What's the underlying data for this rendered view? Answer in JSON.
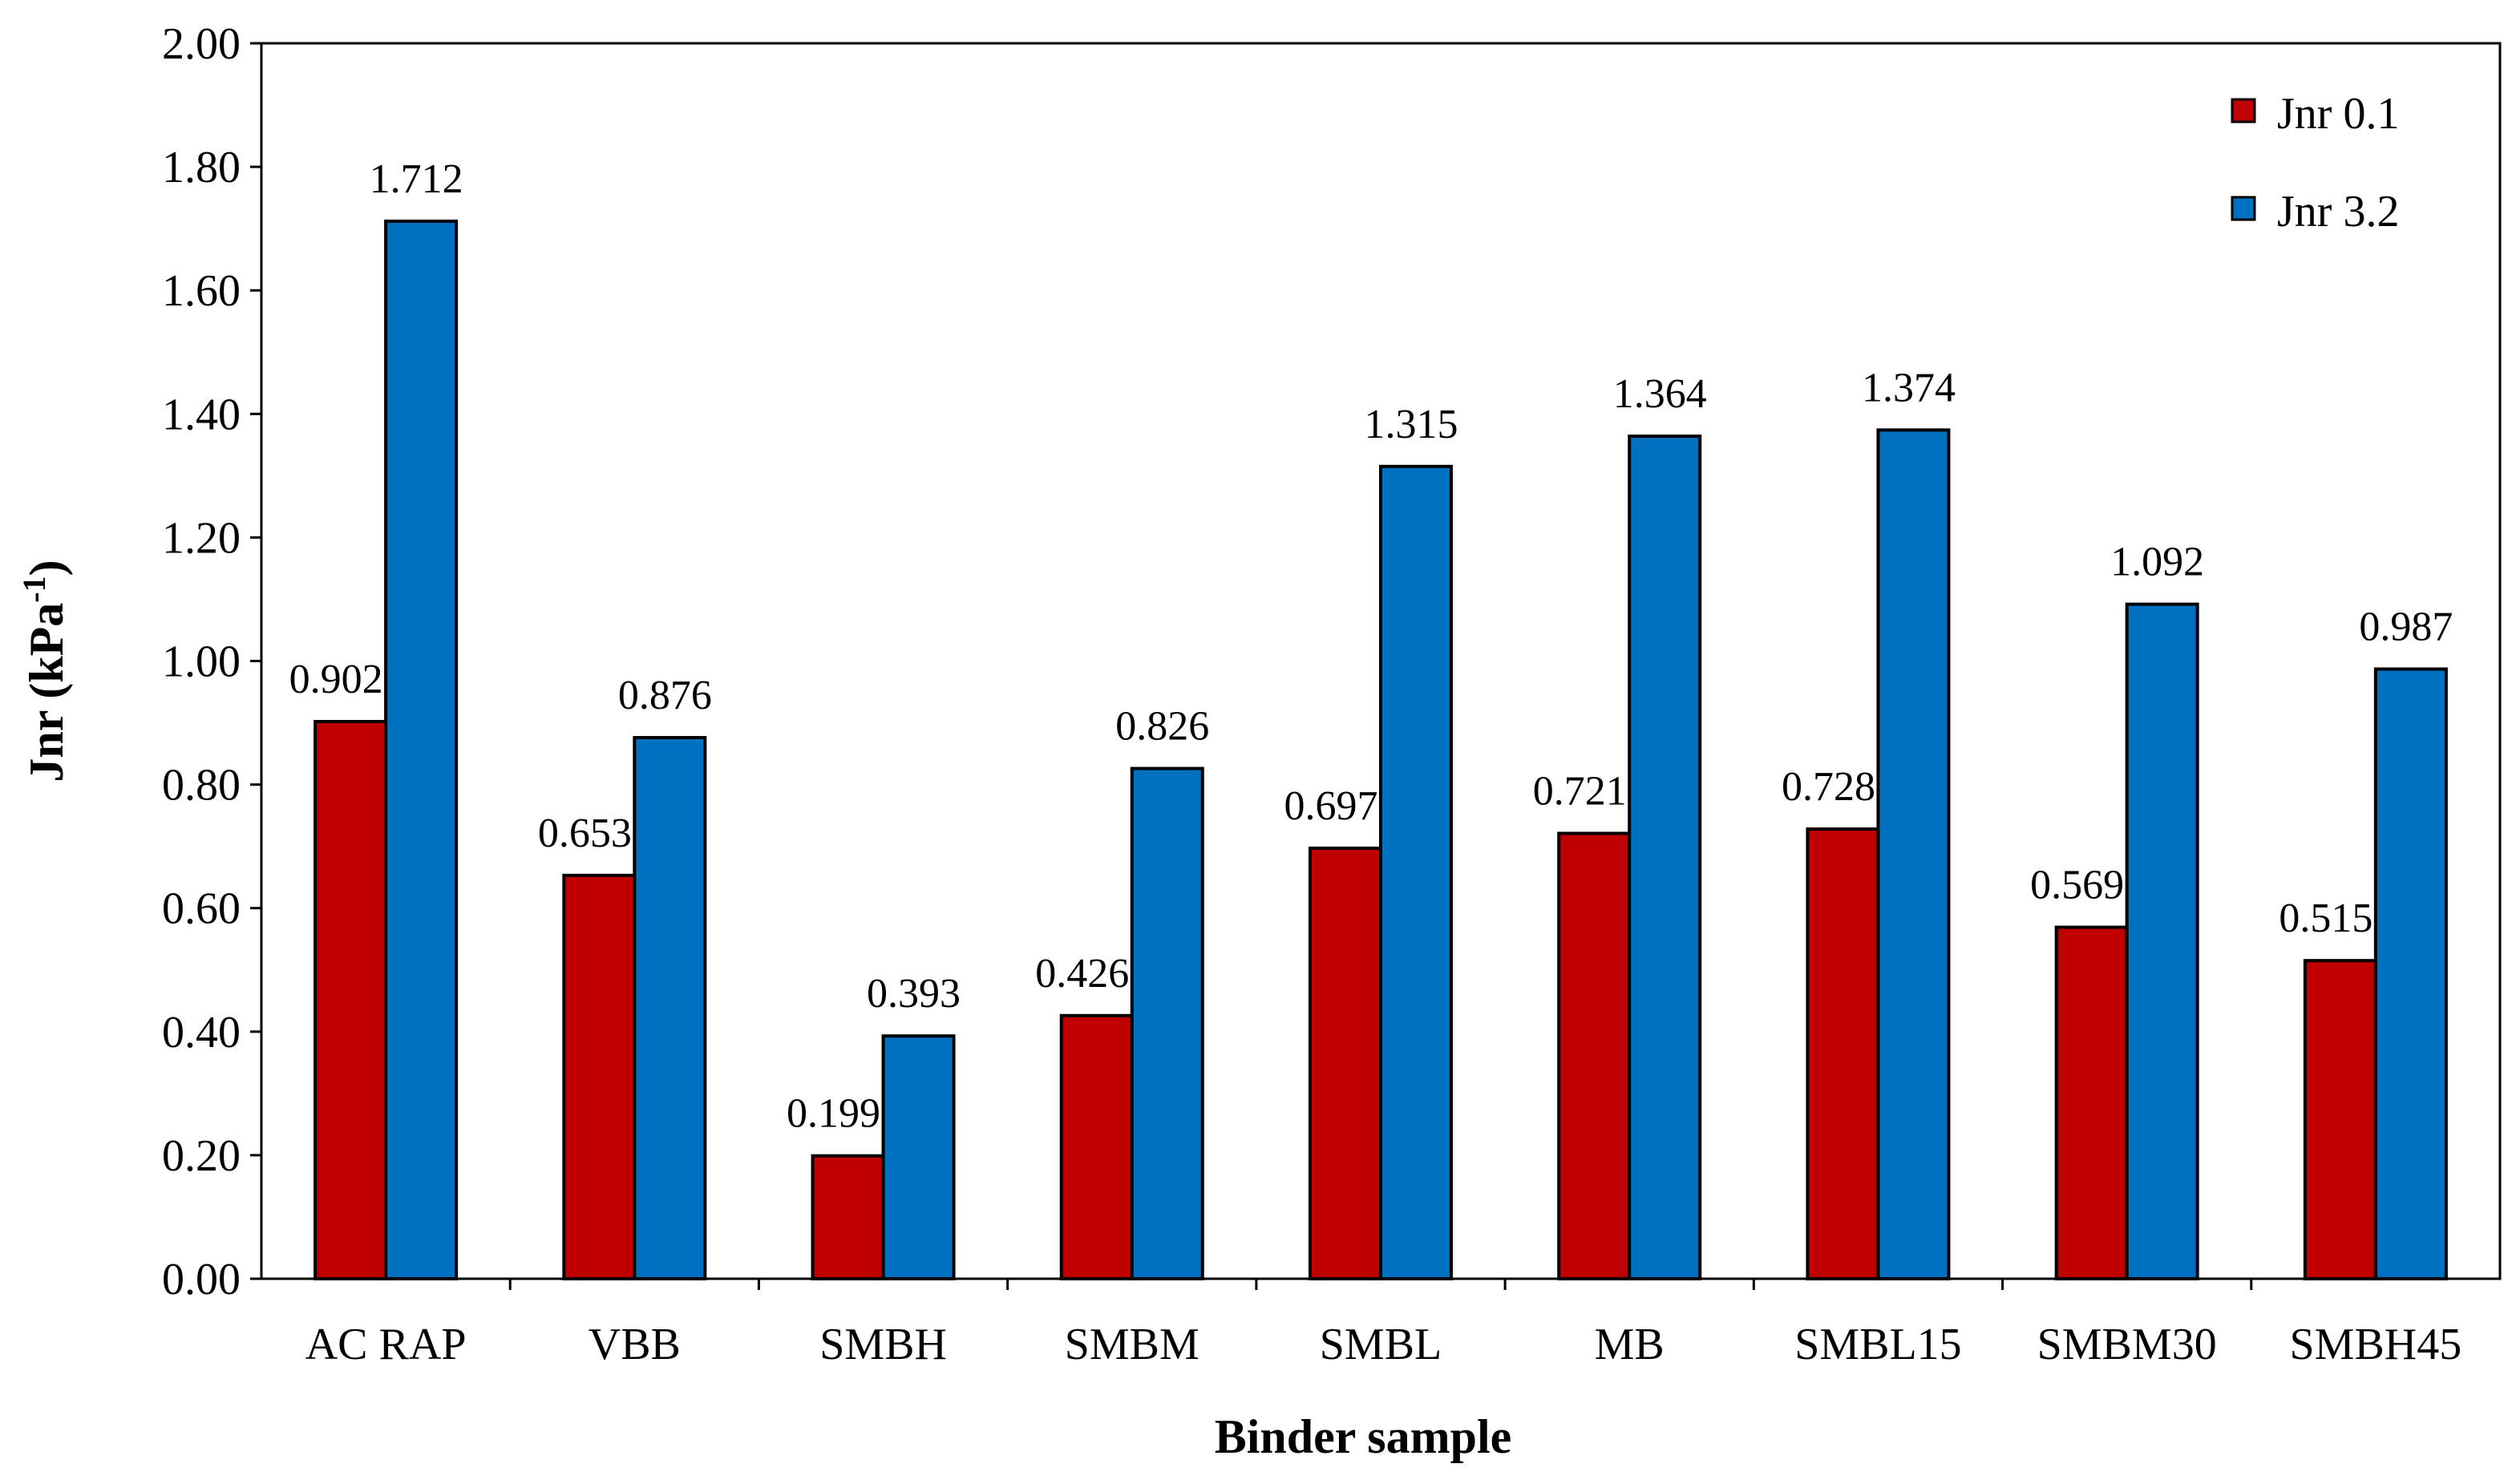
{
  "chart_data": {
    "type": "bar",
    "title": "",
    "xlabel": "Binder sample",
    "ylabel": "Jnr (kPa",
    "ylabel_superscript": "-1",
    "ylabel_close": ")",
    "ylim": [
      0,
      2.0
    ],
    "ytick_step": 0.2,
    "yticks": [
      "0.00",
      "0.20",
      "0.40",
      "0.60",
      "0.80",
      "1.00",
      "1.20",
      "1.40",
      "1.60",
      "1.80",
      "2.00"
    ],
    "grid": false,
    "legend_position": "top-right",
    "categories": [
      "AC RAP",
      "VBB",
      "SMBH",
      "SMBM",
      "SMBL",
      "MB",
      "SMBL15",
      "SMBM30",
      "SMBH45"
    ],
    "series": [
      {
        "name": "Jnr 0.1",
        "color": "#C00000",
        "values": [
          0.902,
          0.653,
          0.199,
          0.426,
          0.697,
          0.721,
          0.728,
          0.569,
          0.515
        ],
        "labels": [
          "0.902",
          "0.653",
          "0.199",
          "0.426",
          "0.697",
          "0.721",
          "0.728",
          "0.569",
          "0.515"
        ]
      },
      {
        "name": "Jnr 3.2",
        "color": "#0070C0",
        "values": [
          1.712,
          0.876,
          0.393,
          0.826,
          1.315,
          1.364,
          1.374,
          1.092,
          0.987
        ],
        "labels": [
          "1.712",
          "0.876",
          "0.393",
          "0.826",
          "1.315",
          "1.364",
          "1.374",
          "1.092",
          "0.987"
        ]
      }
    ]
  }
}
